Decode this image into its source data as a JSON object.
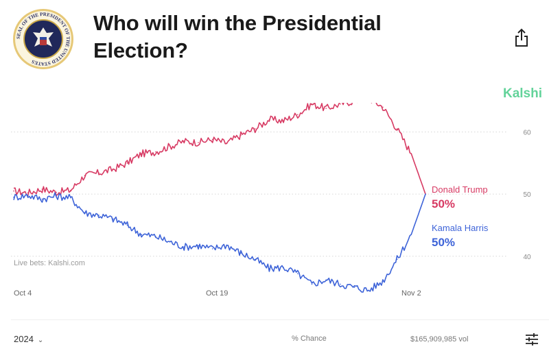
{
  "header": {
    "title": "Who will win the Presidential Election?",
    "seal_text": "SEAL OF THE PRESIDENT OF THE UNITED STATES",
    "icons": [
      "presidential-seal-icon",
      "share-icon"
    ]
  },
  "brand": "Kalshi",
  "footer": {
    "year": "2024",
    "chance_label": "% Chance",
    "volume": "$165,909,985 vol",
    "icons": [
      "chevron-down-icon",
      "filter-sliders-icon"
    ]
  },
  "colors": {
    "trump": "#d73a63",
    "harris": "#3d63d8",
    "brand": "#63d39a"
  },
  "chart_data": {
    "type": "line",
    "x_ticks": [
      "Oct 4",
      "Oct 19",
      "Nov 2"
    ],
    "y_ticks": [
      40,
      50,
      60
    ],
    "ylim": [
      36,
      68
    ],
    "grid": true,
    "annotation": "Live bets: Kalshi.com",
    "x": [
      "Oct 4",
      "Oct 5",
      "Oct 6",
      "Oct 7",
      "Oct 8",
      "Oct 9",
      "Oct 10",
      "Oct 11",
      "Oct 12",
      "Oct 13",
      "Oct 14",
      "Oct 15",
      "Oct 16",
      "Oct 17",
      "Oct 18",
      "Oct 19",
      "Oct 20",
      "Oct 21",
      "Oct 22",
      "Oct 23",
      "Oct 24",
      "Oct 25",
      "Oct 26",
      "Oct 27",
      "Oct 28",
      "Oct 29",
      "Oct 30",
      "Oct 31",
      "Nov 1",
      "Nov 2"
    ],
    "series": [
      {
        "name": "Donald Trump",
        "label": "50%",
        "values": [
          50.5,
          50.2,
          50.8,
          50.3,
          50.6,
          53,
          53.4,
          54,
          55,
          56.5,
          56.8,
          57.7,
          58.5,
          58.3,
          58.8,
          58.2,
          59.5,
          60.5,
          62,
          61.8,
          62.8,
          64.5,
          63.8,
          64.5,
          65,
          65.5,
          64,
          60.5,
          56.5,
          50
        ]
      },
      {
        "name": "Kamala Harris",
        "label": "50%",
        "values": [
          49.5,
          49.8,
          49.2,
          49.7,
          49.4,
          47,
          46.6,
          46,
          45,
          43.5,
          43.2,
          42.3,
          41.5,
          41.7,
          41.2,
          41.8,
          40.5,
          39.5,
          38,
          38.2,
          37.2,
          35.5,
          36.2,
          35.5,
          35,
          34.5,
          36,
          39.5,
          43.5,
          50
        ]
      }
    ]
  }
}
